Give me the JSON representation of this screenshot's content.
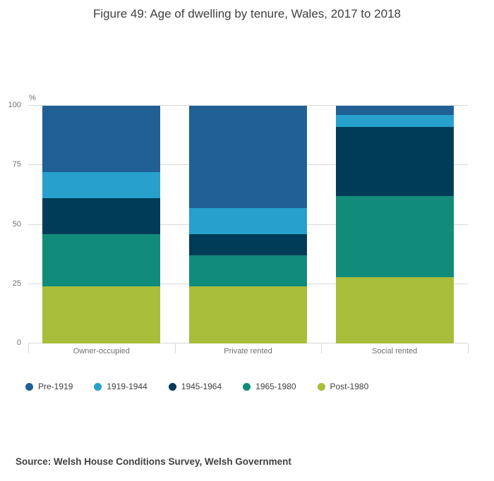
{
  "source": "Source: Welsh House Conditions Survey, Welsh Government",
  "chart_data": {
    "type": "bar",
    "stacked": true,
    "title": "Figure 49: Age of dwelling by tenure, Wales, 2017 to 2018",
    "xlabel": "",
    "ylabel": "%",
    "ylim": [
      0,
      100
    ],
    "yticks": [
      0,
      25,
      50,
      75,
      100
    ],
    "grid": true,
    "legend_position": "bottom",
    "categories": [
      "Owner-occupied",
      "Private rented",
      "Social rented"
    ],
    "series": [
      {
        "name": "Pre-1919",
        "color": "#206095",
        "values": [
          28,
          43,
          4
        ]
      },
      {
        "name": "1919-1944",
        "color": "#27a0cc",
        "values": [
          11,
          11,
          5
        ]
      },
      {
        "name": "1945-1964",
        "color": "#003c57",
        "values": [
          15,
          9,
          29
        ]
      },
      {
        "name": "1965-1980",
        "color": "#118c7b",
        "values": [
          22,
          13,
          34
        ]
      },
      {
        "name": "Post-1980",
        "color": "#a8bd3a",
        "values": [
          24,
          24,
          28
        ]
      }
    ]
  }
}
